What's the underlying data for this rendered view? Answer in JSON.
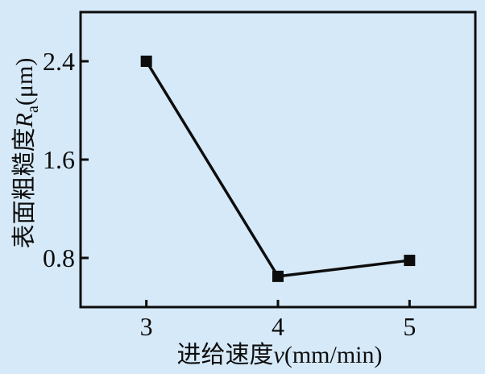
{
  "chart_data": {
    "type": "line",
    "title": "",
    "x": [
      3,
      4,
      5
    ],
    "y": [
      2.4,
      0.65,
      0.78
    ],
    "series": [
      {
        "name": "表面粗糙度Ra",
        "x": [
          3,
          4,
          5
        ],
        "y": [
          2.4,
          0.65,
          0.78
        ]
      }
    ],
    "x_ticks": [
      3,
      4,
      5
    ],
    "y_ticks": [
      0.8,
      1.6,
      2.4
    ],
    "xlim": [
      2.5,
      5.5
    ],
    "ylim": [
      0.4,
      2.8
    ],
    "xlabel": "进给速度v(mm/min)",
    "ylabel": "表面粗糙度Ra(μm)",
    "xlabel_cn": "进给速度",
    "xlabel_var": "v",
    "xlabel_unit": "(mm/min)",
    "ylabel_cn": "表面粗糙度",
    "ylabel_var": "R",
    "ylabel_sub": "a",
    "ylabel_unit": "(μm)",
    "marker": "filled-square",
    "grid": false,
    "legend": "none",
    "colors": {
      "background": "#d6e9f8",
      "line": "#0d0d0d",
      "text": "#0d0d0d"
    }
  }
}
